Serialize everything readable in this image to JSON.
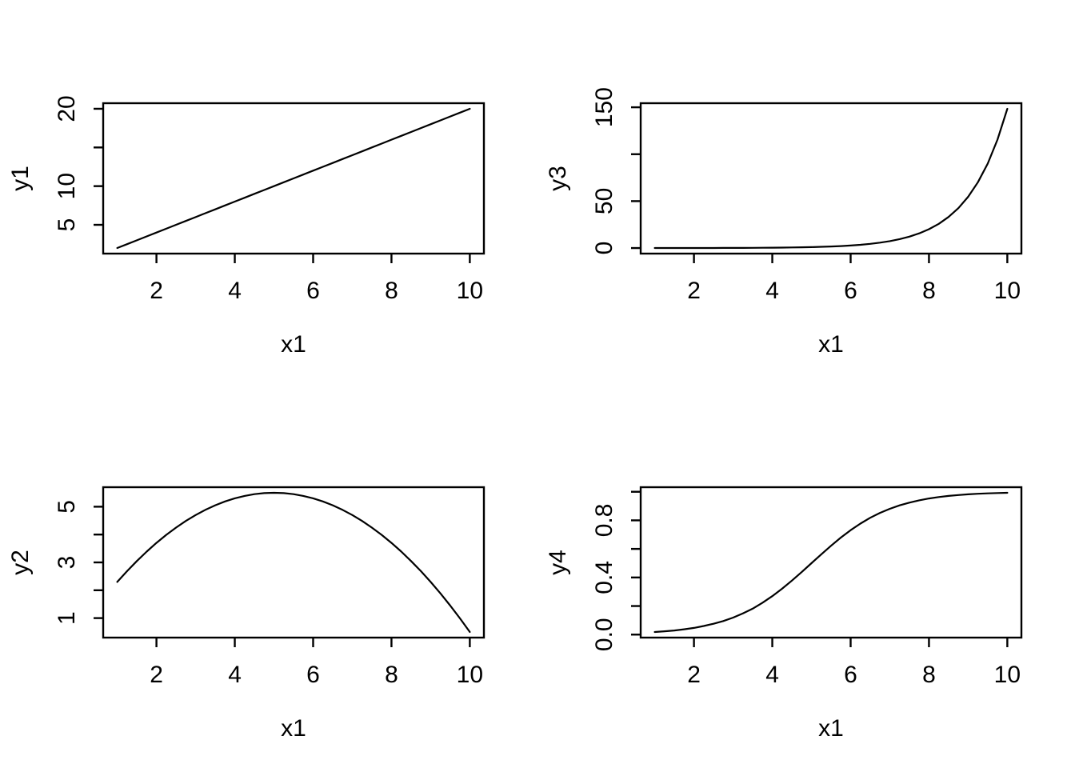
{
  "background_color": "#ffffff",
  "foreground_color": "#000000",
  "chart_data": [
    {
      "id": "top-left",
      "type": "line",
      "title": "",
      "xlabel": "x1",
      "ylabel": "y1",
      "xlim": [
        0.64,
        10.36
      ],
      "ylim": [
        1.28,
        20.72
      ],
      "xticks": [
        2,
        4,
        6,
        8,
        10
      ],
      "xtick_labels": [
        "2",
        "4",
        "6",
        "8",
        "10"
      ],
      "yticks": [
        5,
        10,
        15,
        20
      ],
      "ytick_labels": [
        "5",
        "10",
        "",
        "20"
      ],
      "line_color": "#000000",
      "x": [
        1,
        1.25,
        1.5,
        1.75,
        2,
        2.25,
        2.5,
        2.75,
        3,
        3.25,
        3.5,
        3.75,
        4,
        4.25,
        4.5,
        4.75,
        5,
        5.25,
        5.5,
        5.75,
        6,
        6.25,
        6.5,
        6.75,
        7,
        7.25,
        7.5,
        7.75,
        8,
        8.25,
        8.5,
        8.75,
        9,
        9.25,
        9.5,
        9.75,
        10
      ],
      "y": [
        2,
        2.5,
        3,
        3.5,
        4,
        4.5,
        5,
        5.5,
        6,
        6.5,
        7,
        7.5,
        8,
        8.5,
        9,
        9.5,
        10,
        10.5,
        11,
        11.5,
        12,
        12.5,
        13,
        13.5,
        14,
        14.5,
        15,
        15.5,
        16,
        16.5,
        17,
        17.5,
        18,
        18.5,
        19,
        19.5,
        20
      ]
    },
    {
      "id": "top-right",
      "type": "line",
      "title": "",
      "xlabel": "x1",
      "ylabel": "y3",
      "xlim": [
        0.64,
        10.36
      ],
      "ylim": [
        -5.92,
        154.35
      ],
      "xticks": [
        2,
        4,
        6,
        8,
        10
      ],
      "xtick_labels": [
        "2",
        "4",
        "6",
        "8",
        "10"
      ],
      "yticks": [
        0,
        50,
        100,
        150
      ],
      "ytick_labels": [
        "0",
        "50",
        "",
        "150"
      ],
      "line_color": "#000000",
      "x": [
        1,
        1.25,
        1.5,
        1.75,
        2,
        2.25,
        2.5,
        2.75,
        3,
        3.25,
        3.5,
        3.75,
        4,
        4.25,
        4.5,
        4.75,
        5,
        5.25,
        5.5,
        5.75,
        6,
        6.25,
        6.5,
        6.75,
        7,
        7.25,
        7.5,
        7.75,
        8,
        8.25,
        8.5,
        8.75,
        9,
        9.25,
        9.5,
        9.75,
        10
      ],
      "y": [
        0.018,
        0.024,
        0.03,
        0.039,
        0.05,
        0.064,
        0.082,
        0.105,
        0.135,
        0.174,
        0.223,
        0.287,
        0.368,
        0.472,
        0.607,
        0.779,
        1,
        1.284,
        1.649,
        2.117,
        2.718,
        3.49,
        4.482,
        5.755,
        7.389,
        9.488,
        12.182,
        15.643,
        20.086,
        25.79,
        33.115,
        42.521,
        54.598,
        70.105,
        90.017,
        115.584,
        148.413
      ]
    },
    {
      "id": "bottom-left",
      "type": "line",
      "title": "",
      "xlabel": "x1",
      "ylabel": "y2",
      "xlim": [
        0.64,
        10.36
      ],
      "ylim": [
        0.3,
        5.7
      ],
      "xticks": [
        2,
        4,
        6,
        8,
        10
      ],
      "xtick_labels": [
        "2",
        "4",
        "6",
        "8",
        "10"
      ],
      "yticks": [
        1,
        2,
        3,
        4,
        5
      ],
      "ytick_labels": [
        "1",
        "",
        "3",
        "",
        "5"
      ],
      "line_color": "#000000",
      "x": [
        1,
        1.25,
        1.5,
        1.75,
        2,
        2.25,
        2.5,
        2.75,
        3,
        3.25,
        3.5,
        3.75,
        4,
        4.25,
        4.5,
        4.75,
        5,
        5.25,
        5.5,
        5.75,
        6,
        6.25,
        6.5,
        6.75,
        7,
        7.25,
        7.5,
        7.75,
        8,
        8.25,
        8.5,
        8.75,
        9,
        9.25,
        9.5,
        9.75,
        10
      ],
      "y": [
        2.3,
        2.688,
        3.05,
        3.388,
        3.7,
        3.988,
        4.25,
        4.488,
        4.7,
        4.888,
        5.05,
        5.188,
        5.3,
        5.388,
        5.45,
        5.488,
        5.5,
        5.488,
        5.45,
        5.388,
        5.3,
        5.188,
        5.05,
        4.888,
        4.7,
        4.488,
        4.25,
        3.988,
        3.7,
        3.388,
        3.05,
        2.688,
        2.3,
        1.888,
        1.45,
        0.988,
        0.5
      ]
    },
    {
      "id": "bottom-right",
      "type": "line",
      "title": "",
      "xlabel": "x1",
      "ylabel": "y4",
      "xlim": [
        0.64,
        10.36
      ],
      "ylim": [
        -0.021,
        1.032
      ],
      "xticks": [
        2,
        4,
        6,
        8,
        10
      ],
      "xtick_labels": [
        "2",
        "4",
        "6",
        "8",
        "10"
      ],
      "yticks": [
        0,
        0.2,
        0.4,
        0.6,
        0.8,
        1.0
      ],
      "ytick_labels": [
        "0.0",
        "",
        "0.4",
        "",
        "0.8",
        ""
      ],
      "line_color": "#000000",
      "x": [
        1,
        1.25,
        1.5,
        1.75,
        2,
        2.25,
        2.5,
        2.75,
        3,
        3.25,
        3.5,
        3.75,
        4,
        4.25,
        4.5,
        4.75,
        5,
        5.25,
        5.5,
        5.75,
        6,
        6.25,
        6.5,
        6.75,
        7,
        7.25,
        7.5,
        7.75,
        8,
        8.25,
        8.5,
        8.75,
        9,
        9.25,
        9.5,
        9.75,
        10
      ],
      "y": [
        0.018,
        0.023,
        0.029,
        0.037,
        0.047,
        0.06,
        0.076,
        0.095,
        0.119,
        0.148,
        0.182,
        0.223,
        0.269,
        0.321,
        0.378,
        0.438,
        0.5,
        0.562,
        0.622,
        0.679,
        0.731,
        0.777,
        0.818,
        0.852,
        0.881,
        0.905,
        0.924,
        0.94,
        0.953,
        0.963,
        0.971,
        0.977,
        0.982,
        0.986,
        0.989,
        0.991,
        0.993
      ]
    }
  ]
}
